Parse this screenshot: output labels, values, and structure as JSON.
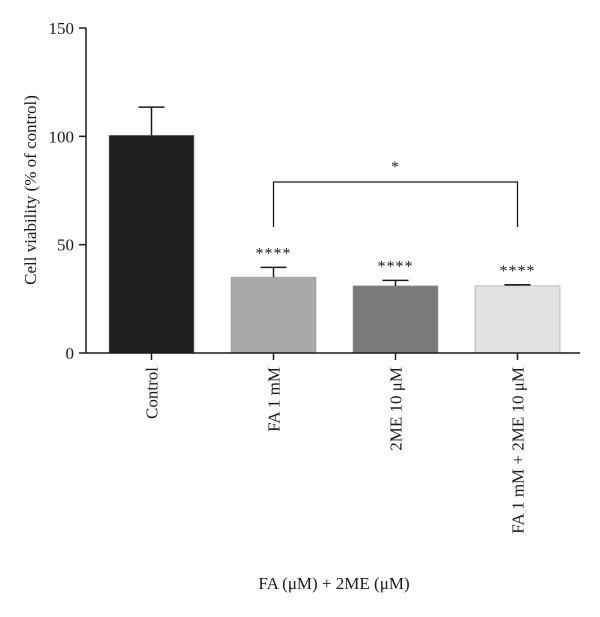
{
  "chart_data": {
    "type": "bar",
    "categories": [
      "Control",
      "FA 1 mM",
      "2ME 10 μM",
      "FA 1 mM + 2ME 10 μM"
    ],
    "values": [
      100.5,
      35,
      31,
      31
    ],
    "errors": [
      13,
      4.5,
      2.5,
      0.5
    ],
    "colors": [
      "#1e1e1e",
      "#a9a9a9",
      "#7a7a7a",
      "#e2e2e2"
    ],
    "significance": [
      "",
      "****",
      "****",
      "****"
    ],
    "bracket": {
      "from": 1,
      "to": 3,
      "label": "*"
    },
    "ylabel": "Cell viability (% of control)",
    "xlabel": "FA (μM) + 2ME (μM)",
    "ylim": [
      0,
      150
    ],
    "yticks": [
      0,
      50,
      100,
      150
    ],
    "grid": false
  }
}
